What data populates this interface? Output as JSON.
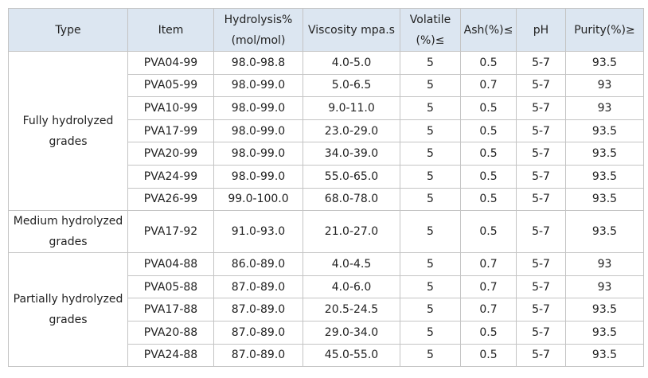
{
  "table": {
    "header": [
      [
        "Type"
      ],
      [
        "Item"
      ],
      [
        "Hydrolysis%",
        "(mol/mol)"
      ],
      [
        "Viscosity mpa.s"
      ],
      [
        "Volatile",
        "(%)≤"
      ],
      [
        "Ash(%)≤"
      ],
      [
        "pH"
      ],
      [
        "Purity(%)≥"
      ]
    ],
    "groups": [
      {
        "type": [
          "Fully hydrolyzed",
          "grades"
        ],
        "rows": [
          [
            "PVA04-99",
            "98.0-98.8",
            "4.0-5.0",
            "5",
            "0.5",
            "5-7",
            "93.5"
          ],
          [
            "PVA05-99",
            "98.0-99.0",
            "5.0-6.5",
            "5",
            "0.7",
            "5-7",
            "93"
          ],
          [
            "PVA10-99",
            "98.0-99.0",
            "9.0-11.0",
            "5",
            "0.5",
            "5-7",
            "93"
          ],
          [
            "PVA17-99",
            "98.0-99.0",
            "23.0-29.0",
            "5",
            "0.5",
            "5-7",
            "93.5"
          ],
          [
            "PVA20-99",
            "98.0-99.0",
            "34.0-39.0",
            "5",
            "0.5",
            "5-7",
            "93.5"
          ],
          [
            "PVA24-99",
            "98.0-99.0",
            "55.0-65.0",
            "5",
            "0.5",
            "5-7",
            "93.5"
          ],
          [
            "PVA26-99",
            "99.0-100.0",
            "68.0-78.0",
            "5",
            "0.5",
            "5-7",
            "93.5"
          ]
        ]
      },
      {
        "type": [
          "Medium hydrolyzed",
          "grades"
        ],
        "rows": [
          [
            "PVA17-92",
            "91.0-93.0",
            "21.0-27.0",
            "5",
            "0.5",
            "5-7",
            "93.5"
          ]
        ]
      },
      {
        "type": [
          "Partially hydrolyzed",
          "grades"
        ],
        "rows": [
          [
            "PVA04-88",
            "86.0-89.0",
            "4.0-4.5",
            "5",
            "0.7",
            "5-7",
            "93"
          ],
          [
            "PVA05-88",
            "87.0-89.0",
            "4.0-6.0",
            "5",
            "0.7",
            "5-7",
            "93"
          ],
          [
            "PVA17-88",
            "87.0-89.0",
            "20.5-24.5",
            "5",
            "0.7",
            "5-7",
            "93.5"
          ],
          [
            "PVA20-88",
            "87.0-89.0",
            "29.0-34.0",
            "5",
            "0.5",
            "5-7",
            "93.5"
          ],
          [
            "PVA24-88",
            "87.0-89.0",
            "45.0-55.0",
            "5",
            "0.5",
            "5-7",
            "93.5"
          ]
        ]
      }
    ]
  }
}
